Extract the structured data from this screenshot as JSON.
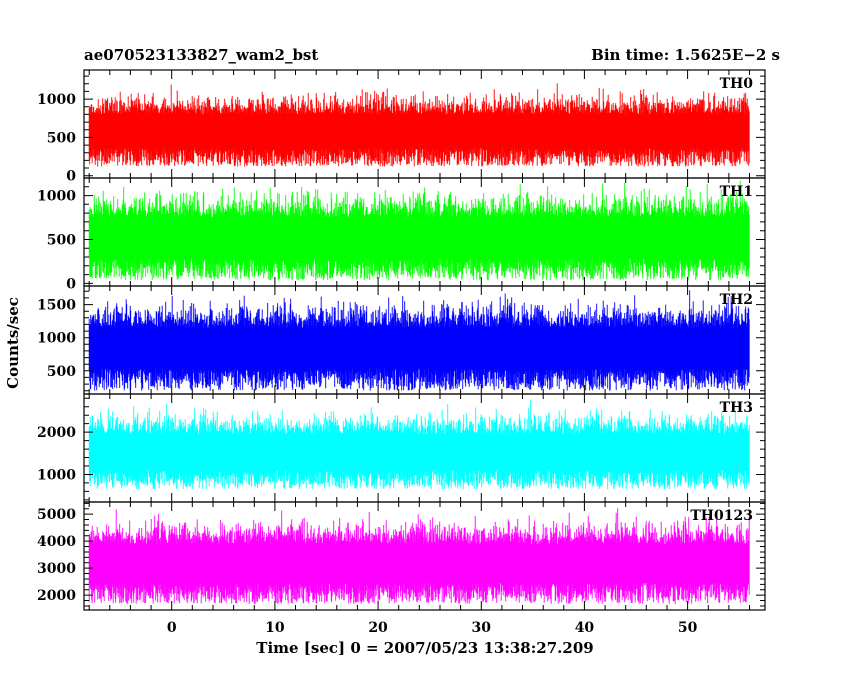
{
  "chart_data": {
    "type": "line",
    "title": "ae070523133827_wam2_bst",
    "subtitle": "Bin time: 1.5625E−2 s",
    "xlabel": "Time [sec] 0 = 2007/05/23 13:38:27.209",
    "ylabel": "Counts/sec",
    "xlim": [
      -8.5,
      57.5
    ],
    "x_ticks": [
      0,
      10,
      20,
      30,
      40,
      50
    ],
    "x_tick_labels": [
      "0",
      "10",
      "20",
      "30",
      "40",
      "50"
    ],
    "x_data_range": [
      -8.0,
      56.0
    ],
    "grid": false,
    "panels": [
      {
        "name": "TH0",
        "color": "#ff0000",
        "ylim": [
          -30,
          1380
        ],
        "y_ticks": [
          0,
          500,
          1000
        ],
        "y_tick_labels": [
          "0",
          "500",
          "1000"
        ],
        "mean": 620,
        "spread": 200,
        "series_min": 0,
        "series_max": 1380
      },
      {
        "name": "TH1",
        "color": "#00ff00",
        "ylim": [
          -30,
          1200
        ],
        "y_ticks": [
          0,
          500,
          1000
        ],
        "y_tick_labels": [
          "0",
          "500",
          "1000"
        ],
        "mean": 560,
        "spread": 210,
        "series_min": 0,
        "series_max": 1200
      },
      {
        "name": "TH2",
        "color": "#0000ff",
        "ylim": [
          150,
          1780
        ],
        "y_ticks": [
          500,
          1000,
          1500
        ],
        "y_tick_labels": [
          "500",
          "1000",
          "1500"
        ],
        "mean": 900,
        "spread": 280,
        "series_min": 200,
        "series_max": 1780
      },
      {
        "name": "TH3",
        "color": "#00ffff",
        "ylim": [
          350,
          2900
        ],
        "y_ticks": [
          1000,
          2000
        ],
        "y_tick_labels": [
          "1000",
          "2000"
        ],
        "mean": 1600,
        "spread": 380,
        "series_min": 400,
        "series_max": 2900
      },
      {
        "name": "TH0123",
        "color": "#ff00ff",
        "ylim": [
          1450,
          5450
        ],
        "y_ticks": [
          2000,
          3000,
          4000,
          5000
        ],
        "y_tick_labels": [
          "2000",
          "3000",
          "4000",
          "5000"
        ],
        "mean": 3300,
        "spread": 650,
        "series_min": 1500,
        "series_max": 5450
      }
    ]
  }
}
